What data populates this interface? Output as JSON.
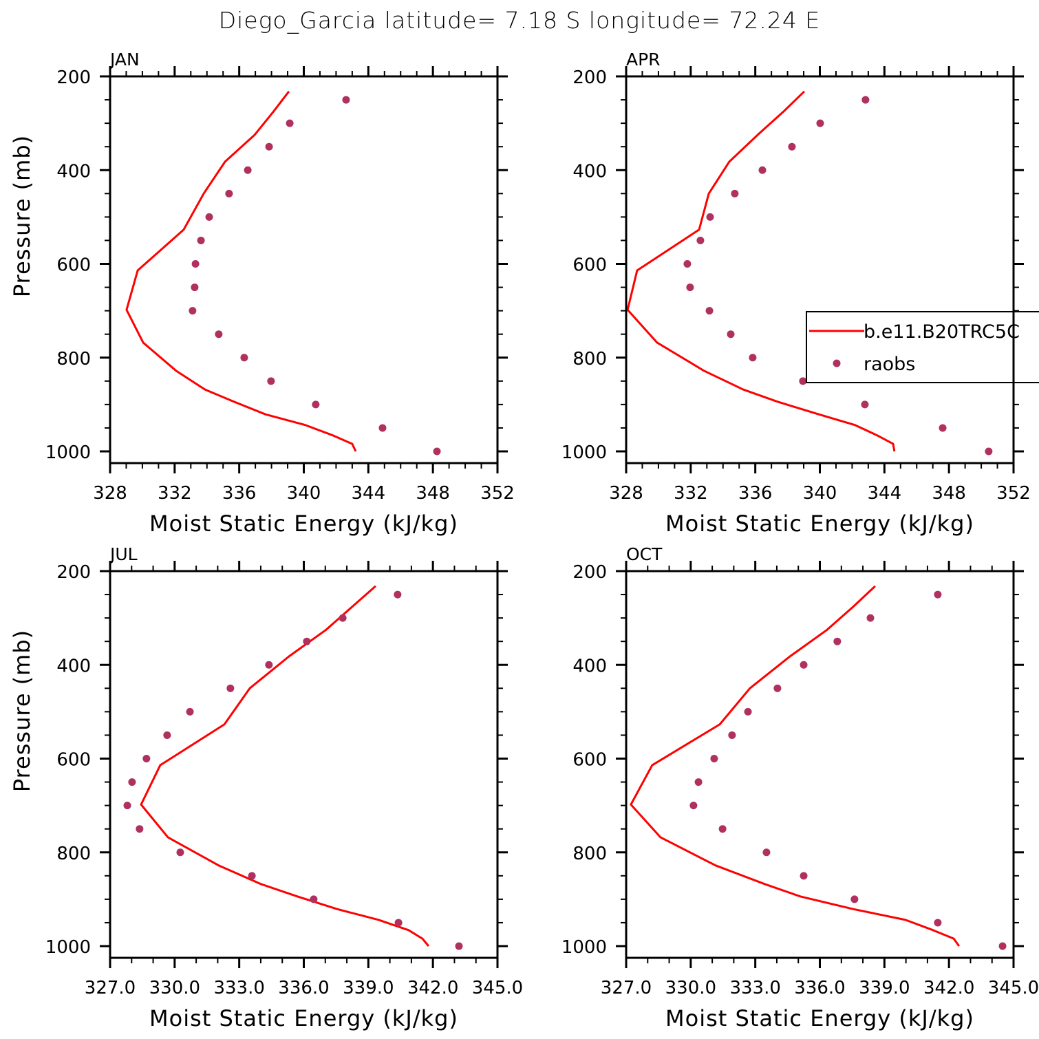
{
  "title": "Diego_Garcia  latitude= 7.18 S longitude= 72.24 E",
  "legend": {
    "placement": "right-middle of APR panel",
    "line_label": "b.e11.B20TRC5C",
    "dot_label": "raobs",
    "line_color": "#ff0000",
    "dot_color": "#b03060"
  },
  "chart_data": [
    {
      "type": "line+scatter",
      "title": "JAN",
      "xlabel": "Moist Static Energy (kJ/kg)",
      "ylabel": "Pressure (mb)",
      "xlim": [
        328,
        352
      ],
      "ylim": [
        200,
        1025
      ],
      "y_reversed": true,
      "xticks": [
        "328",
        "332",
        "336",
        "340",
        "344",
        "348",
        "352"
      ],
      "xtick_values": [
        328,
        332,
        336,
        340,
        344,
        348,
        352
      ],
      "yticks": [
        "200",
        "400",
        "600",
        "800",
        "1000"
      ],
      "ytick_values": [
        200,
        400,
        600,
        800,
        1000
      ],
      "model": {
        "name": "b.e11.B20TRC5C",
        "pressure": [
          232,
          276,
          325,
          382,
          450,
          527,
          614,
          698,
          768,
          828,
          868,
          894,
          921,
          944,
          966,
          984,
          1000
        ],
        "values": [
          339.08,
          338.1,
          336.95,
          335.12,
          333.8,
          332.56,
          329.71,
          329.02,
          330.05,
          332.09,
          333.88,
          335.67,
          337.63,
          340.11,
          341.81,
          343.0,
          343.22
        ]
      },
      "obs": {
        "name": "raobs",
        "pressure": [
          250,
          300,
          350,
          400,
          450,
          500,
          550,
          600,
          650,
          700,
          750,
          800,
          850,
          900,
          950,
          1000
        ],
        "values": [
          342.62,
          339.13,
          337.85,
          336.53,
          335.37,
          334.14,
          333.63,
          333.29,
          333.24,
          333.11,
          334.73,
          336.31,
          337.97,
          340.74,
          344.88,
          348.25
        ]
      }
    },
    {
      "type": "line+scatter",
      "title": "APR",
      "xlabel": "Moist Static Energy (kJ/kg)",
      "ylabel": "",
      "xlim": [
        328,
        352
      ],
      "ylim": [
        200,
        1025
      ],
      "y_reversed": true,
      "xticks": [
        "328",
        "332",
        "336",
        "340",
        "344",
        "348",
        "352"
      ],
      "xtick_values": [
        328,
        332,
        336,
        340,
        344,
        348,
        352
      ],
      "yticks": [
        "200",
        "400",
        "600",
        "800",
        "1000"
      ],
      "ytick_values": [
        200,
        400,
        600,
        800,
        1000
      ],
      "model": {
        "name": "b.e11.B20TRC5C",
        "pressure": [
          232,
          276,
          325,
          382,
          450,
          527,
          614,
          698,
          768,
          828,
          868,
          894,
          921,
          944,
          966,
          984,
          1000
        ],
        "values": [
          339.04,
          337.72,
          336.14,
          334.39,
          333.12,
          332.52,
          328.68,
          328.09,
          329.92,
          332.82,
          335.25,
          337.38,
          339.94,
          342.19,
          343.56,
          344.54,
          344.62
        ]
      },
      "obs": {
        "name": "raobs",
        "pressure": [
          250,
          300,
          350,
          400,
          450,
          500,
          550,
          600,
          650,
          700,
          750,
          800,
          850,
          900,
          950,
          1000
        ],
        "values": [
          342.83,
          340.02,
          338.27,
          336.44,
          334.73,
          333.2,
          332.6,
          331.79,
          331.96,
          333.16,
          334.48,
          335.84,
          338.95,
          342.79,
          347.61,
          350.46
        ]
      }
    },
    {
      "type": "line+scatter",
      "title": "JUL",
      "xlabel": "Moist Static Energy (kJ/kg)",
      "ylabel": "Pressure (mb)",
      "xlim": [
        327,
        345
      ],
      "ylim": [
        200,
        1025
      ],
      "y_reversed": true,
      "xticks": [
        "327.0",
        "330.0",
        "333.0",
        "336.0",
        "339.0",
        "342.0",
        "345.0"
      ],
      "xtick_values": [
        327,
        330,
        333,
        336,
        339,
        342,
        345
      ],
      "yticks": [
        "200",
        "400",
        "600",
        "800",
        "1000"
      ],
      "ytick_values": [
        200,
        400,
        600,
        800,
        1000
      ],
      "model": {
        "name": "b.e11.B20TRC5C",
        "pressure": [
          232,
          276,
          325,
          382,
          450,
          527,
          614,
          698,
          768,
          828,
          868,
          894,
          921,
          944,
          966,
          984,
          1000
        ],
        "values": [
          339.34,
          338.25,
          337.04,
          335.31,
          333.49,
          332.31,
          329.33,
          328.44,
          329.69,
          332.05,
          334.03,
          335.7,
          337.55,
          339.47,
          340.87,
          341.51,
          341.8
        ]
      },
      "obs": {
        "name": "raobs",
        "pressure": [
          250,
          300,
          350,
          400,
          450,
          500,
          550,
          600,
          650,
          700,
          750,
          800,
          850,
          900,
          950,
          1000
        ],
        "values": [
          340.36,
          337.81,
          336.14,
          334.38,
          332.59,
          330.71,
          329.65,
          328.69,
          328.02,
          327.8,
          328.37,
          330.26,
          333.59,
          336.46,
          340.4,
          343.21
        ]
      }
    },
    {
      "type": "line+scatter",
      "title": "OCT",
      "xlabel": "Moist Static Energy (kJ/kg)",
      "ylabel": "",
      "xlim": [
        327,
        345
      ],
      "ylim": [
        200,
        1025
      ],
      "y_reversed": true,
      "xticks": [
        "327.0",
        "330.0",
        "333.0",
        "336.0",
        "339.0",
        "342.0",
        "345.0"
      ],
      "xtick_values": [
        327,
        330,
        333,
        336,
        339,
        342,
        345
      ],
      "yticks": [
        "200",
        "400",
        "600",
        "800",
        "1000"
      ],
      "ytick_values": [
        200,
        400,
        600,
        800,
        1000
      ],
      "model": {
        "name": "b.e11.B20TRC5C",
        "pressure": [
          232,
          276,
          325,
          382,
          450,
          527,
          614,
          698,
          768,
          828,
          868,
          894,
          921,
          944,
          966,
          984,
          1000
        ],
        "values": [
          338.57,
          337.55,
          336.34,
          334.61,
          332.75,
          331.35,
          328.21,
          327.22,
          328.6,
          331.16,
          333.46,
          335.09,
          337.55,
          339.98,
          341.26,
          342.22,
          342.47
        ]
      },
      "obs": {
        "name": "raobs",
        "pressure": [
          250,
          300,
          350,
          400,
          450,
          500,
          550,
          600,
          650,
          700,
          750,
          800,
          850,
          900,
          950,
          1000
        ],
        "values": [
          341.48,
          338.35,
          336.81,
          335.25,
          334.03,
          332.66,
          331.92,
          331.09,
          330.36,
          330.13,
          331.48,
          333.52,
          335.25,
          337.61,
          341.48,
          344.49
        ]
      }
    }
  ]
}
